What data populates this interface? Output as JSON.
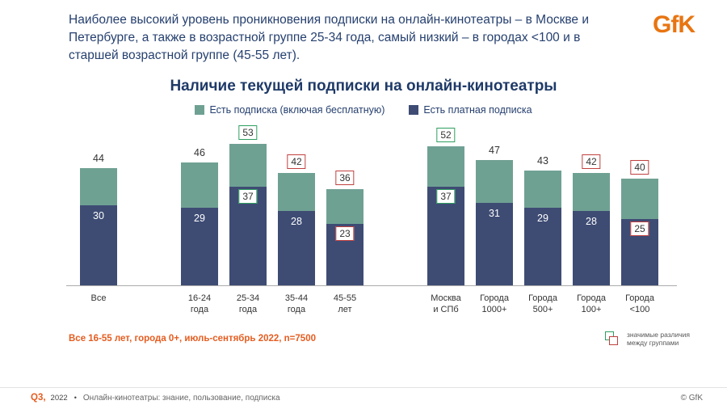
{
  "header": {
    "summary": "Наиболее высокий уровень проникновения подписки на онлайн-кинотеатры – в Москве и Петербурге, а также в возрастной группе 25-34 года, самый низкий – в городах <100 и в старшей возрастной группе (45-55 лет).",
    "logo": "GfK"
  },
  "chart_data": {
    "type": "bar",
    "stacked": true,
    "title": "Наличие текущей подписки на онлайн-кинотеатры",
    "ylim": [
      0,
      53
    ],
    "legend": [
      {
        "label": "Есть подписка (включая бесплатную)",
        "color": "#6FA193"
      },
      {
        "label": "Есть платная подписка",
        "color": "#3E4C74"
      }
    ],
    "significance_colors": {
      "higher": "#2F9E5F",
      "lower": "#C0403E"
    },
    "groups": [
      {
        "bars": [
          {
            "label_lines": [
              "Все"
            ],
            "total": 44,
            "paid": 30,
            "total_box": "",
            "paid_box": ""
          }
        ]
      },
      {
        "bars": [
          {
            "label_lines": [
              "16-24",
              "года"
            ],
            "total": 46,
            "paid": 29,
            "total_box": "",
            "paid_box": ""
          },
          {
            "label_lines": [
              "25-34",
              "года"
            ],
            "total": 53,
            "paid": 37,
            "total_box": "green",
            "paid_box": "green"
          },
          {
            "label_lines": [
              "35-44",
              "года"
            ],
            "total": 42,
            "paid": 28,
            "total_box": "red",
            "paid_box": ""
          },
          {
            "label_lines": [
              "45-55",
              "лет"
            ],
            "total": 36,
            "paid": 23,
            "total_box": "red",
            "paid_box": "red"
          }
        ]
      },
      {
        "bars": [
          {
            "label_lines": [
              "Москва",
              "и СПб"
            ],
            "total": 52,
            "paid": 37,
            "total_box": "green",
            "paid_box": "green"
          },
          {
            "label_lines": [
              "Города",
              "1000+"
            ],
            "total": 47,
            "paid": 31,
            "total_box": "",
            "paid_box": ""
          },
          {
            "label_lines": [
              "Города",
              "500+"
            ],
            "total": 43,
            "paid": 29,
            "total_box": "",
            "paid_box": ""
          },
          {
            "label_lines": [
              "Города",
              "100+"
            ],
            "total": 42,
            "paid": 28,
            "total_box": "red",
            "paid_box": ""
          },
          {
            "label_lines": [
              "Города",
              "<100"
            ],
            "total": 40,
            "paid": 25,
            "total_box": "red",
            "paid_box": "red"
          }
        ]
      }
    ]
  },
  "footnote": {
    "text": "Все 16-55 лет, города 0+, июль-сентябрь 2022, n=7500"
  },
  "significance": {
    "line1": "значимые различия",
    "line2": "между группами"
  },
  "footer": {
    "quarter": "Q3,",
    "year": "2022",
    "separator": "•",
    "note": "Онлайн-кинотеатры: знание, пользование, подписка",
    "copyright": "© GfK"
  }
}
